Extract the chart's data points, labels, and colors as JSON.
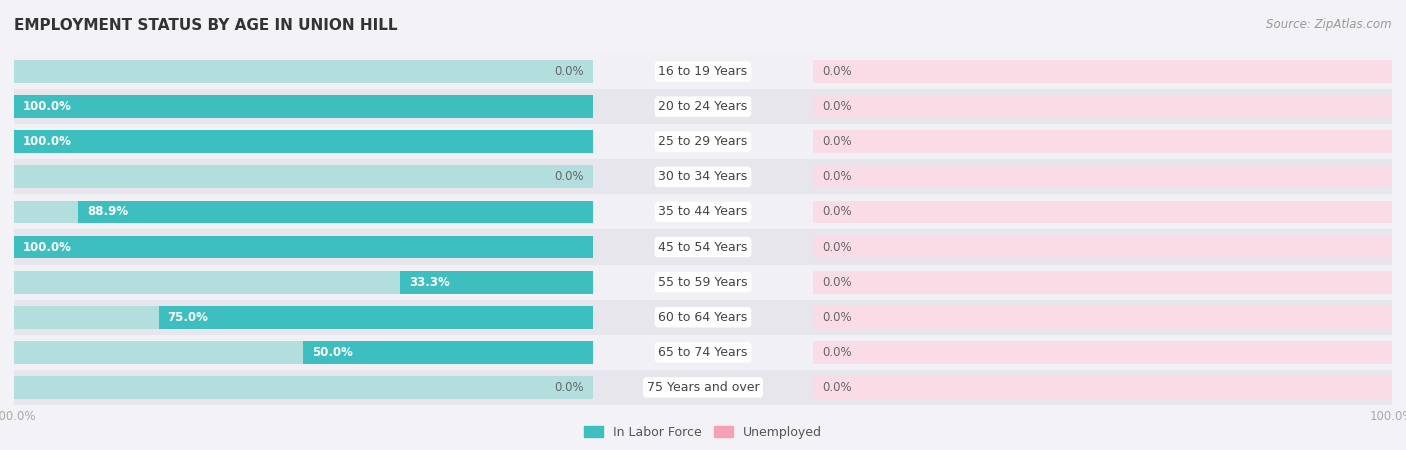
{
  "title": "EMPLOYMENT STATUS BY AGE IN UNION HILL",
  "source": "Source: ZipAtlas.com",
  "categories": [
    "16 to 19 Years",
    "20 to 24 Years",
    "25 to 29 Years",
    "30 to 34 Years",
    "35 to 44 Years",
    "45 to 54 Years",
    "55 to 59 Years",
    "60 to 64 Years",
    "65 to 74 Years",
    "75 Years and over"
  ],
  "labor_force": [
    0.0,
    100.0,
    100.0,
    0.0,
    88.9,
    100.0,
    33.3,
    75.0,
    50.0,
    0.0
  ],
  "unemployed": [
    0.0,
    0.0,
    0.0,
    0.0,
    0.0,
    0.0,
    0.0,
    0.0,
    0.0,
    0.0
  ],
  "labor_force_color": "#3dbfbf",
  "unemployed_color": "#f4a0b5",
  "bg_labor_color": "#b2dede",
  "bg_unemployed_color": "#fadce6",
  "row_bg_odd": "#f0f0f5",
  "row_bg_even": "#e6e6ec",
  "label_color_white": "#ffffff",
  "label_color_dark": "#666666",
  "center_label_color": "#444444",
  "axis_label_color": "#aaaaaa",
  "legend_labor_label": "In Labor Force",
  "legend_unemployed_label": "Unemployed",
  "title_fontsize": 11,
  "source_fontsize": 8.5,
  "bar_label_fontsize": 8.5,
  "category_label_fontsize": 9,
  "axis_tick_fontsize": 8.5,
  "bar_height": 0.65
}
